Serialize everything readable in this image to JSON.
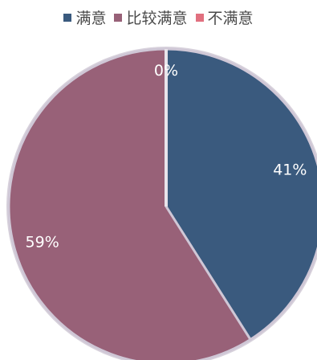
{
  "chart_data": {
    "type": "pie",
    "categories": [
      "满意",
      "比较满意",
      "不满意"
    ],
    "values": [
      41,
      59,
      0
    ],
    "labels": [
      "41%",
      "59%",
      "0%"
    ],
    "colors": [
      "#3a5a7e",
      "#986178",
      "#e1707f"
    ],
    "legend_position": "top-center",
    "start_angle_degrees": 0,
    "direction": "clockwise"
  }
}
